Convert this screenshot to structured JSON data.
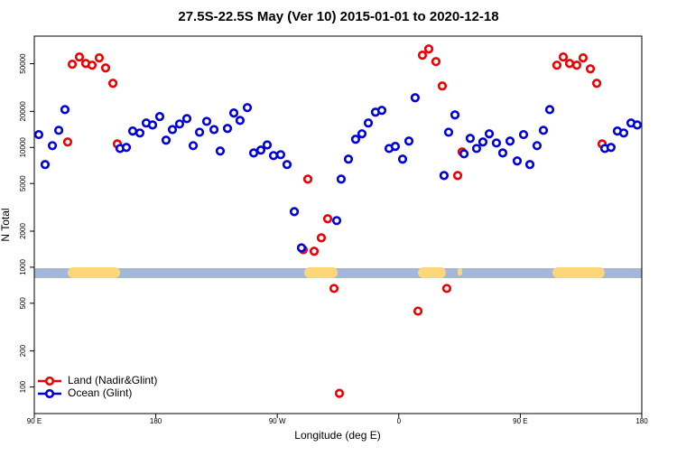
{
  "chart_data": {
    "type": "scatter",
    "title": "27.5S-22.5S May (Ver 10)   2015-01-01 to 2020-12-18",
    "x_label": "Longitude (deg E)",
    "y_label": "N Total",
    "log_y": true,
    "legend": "bottom-left",
    "xlim": [
      90,
      540
    ],
    "xticks": [
      {
        "value": 90,
        "label": "90 E"
      },
      {
        "value": 180,
        "label": "180"
      },
      {
        "value": 270,
        "label": "90 W"
      },
      {
        "value": 360,
        "label": "0"
      },
      {
        "value": 450,
        "label": "90 E"
      },
      {
        "value": 540,
        "label": "180"
      }
    ],
    "ylim": [
      60,
      85000
    ],
    "yticks": [
      100,
      200,
      500,
      1000,
      2000,
      5000,
      10000,
      20000,
      50000
    ],
    "series": [
      {
        "name": "Land (Nadir&Glint)",
        "color": "#ee0000",
        "x": [
          114.7,
          118.1,
          123.4,
          128.1,
          132.8,
          138.1,
          142.8,
          148.2,
          151.5,
          289.2,
          292.6,
          297.3,
          302.6,
          307.3,
          312.0,
          316.0,
          374.2,
          377.5,
          382.2,
          387.5,
          392.2,
          395.5,
          403.6,
          406.9,
          477.1,
          481.8,
          486.5,
          491.8,
          496.5,
          501.9,
          506.6,
          510.6
        ],
        "values": [
          11100,
          49500,
          56900,
          50300,
          48600,
          55900,
          46100,
          34300,
          10700,
          1400,
          5440,
          1360,
          1760,
          2540,
          665,
          88.5,
          430,
          58900,
          66400,
          52100,
          32600,
          665,
          5830,
          9170,
          48600,
          56900,
          50300,
          48600,
          55900,
          45300,
          34300,
          10700
        ]
      },
      {
        "name": "Ocean (Glint)",
        "color": "#0000dd",
        "x": [
          93.3,
          98.0,
          103.4,
          108.1,
          112.7,
          153.5,
          158.2,
          162.9,
          168.2,
          172.9,
          177.6,
          182.9,
          187.6,
          192.3,
          197.6,
          203.0,
          207.7,
          212.4,
          217.7,
          223.1,
          227.7,
          233.1,
          237.8,
          242.4,
          247.8,
          252.5,
          257.8,
          262.5,
          267.2,
          272.5,
          277.2,
          282.6,
          287.9,
          314.0,
          317.3,
          322.7,
          328.0,
          332.7,
          337.4,
          342.7,
          347.4,
          352.8,
          357.4,
          362.8,
          367.5,
          372.1,
          393.5,
          396.9,
          401.6,
          408.3,
          412.9,
          417.6,
          422.3,
          427.0,
          432.3,
          437.0,
          442.4,
          447.7,
          452.4,
          457.1,
          462.4,
          467.1,
          471.8,
          512.6,
          517.2,
          521.9,
          526.6,
          532.0,
          536.6
        ],
        "values": [
          12800,
          7200,
          10350,
          13900,
          20700,
          9800,
          10000,
          13700,
          13200,
          16000,
          15400,
          18100,
          11500,
          14100,
          15700,
          17400,
          10350,
          13400,
          16500,
          14100,
          9330,
          14400,
          19400,
          16800,
          21500,
          9000,
          9500,
          10500,
          8550,
          8700,
          7200,
          2910,
          1450,
          2450,
          5440,
          7980,
          11700,
          13000,
          16000,
          19700,
          20400,
          9800,
          10200,
          7980,
          11300,
          26000,
          5830,
          13400,
          18700,
          8850,
          11900,
          9800,
          11100,
          13000,
          10900,
          9000,
          11300,
          7710,
          12800,
          7200,
          10350,
          13900,
          20700,
          9800,
          10000,
          13700,
          13200,
          16000,
          15400
        ]
      }
    ]
  }
}
